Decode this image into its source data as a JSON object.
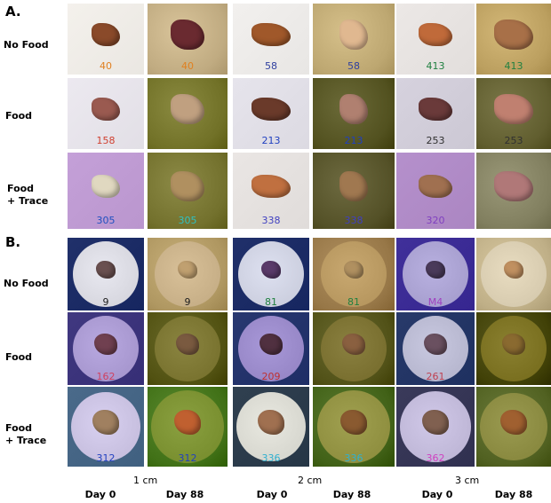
{
  "panel_a": {
    "letter": "A.",
    "rows": [
      {
        "label1": "No Food",
        "label2": "",
        "tags": [
          "40",
          "40",
          "58",
          "58",
          "413",
          "413"
        ],
        "tag_colors": [
          "#e08020",
          "#e08020",
          "#3040a0",
          "#3040a0",
          "#208040",
          "#208040"
        ]
      },
      {
        "label1": "Food",
        "label2": "",
        "tags": [
          "158",
          "",
          "213",
          "213",
          "253",
          "253"
        ],
        "tag_colors": [
          "#d04030",
          "#d04030",
          "#2040c0",
          "#2040c0",
          "#303030",
          "#303030"
        ]
      },
      {
        "label1": "Food",
        "label2": "+ Trace",
        "tags": [
          "305",
          "305",
          "338",
          "338",
          "320",
          ""
        ],
        "tag_colors": [
          "#2050c0",
          "#30c0c0",
          "#4040c0",
          "#4040c0",
          "#8040c0",
          "#8040c0"
        ]
      }
    ]
  },
  "panel_b": {
    "letter": "B.",
    "rows": [
      {
        "label1": "No Food",
        "label2": "",
        "tags": [
          "9",
          "9",
          "81",
          "81",
          "M4",
          ""
        ],
        "tag_colors": [
          "#202020",
          "#202020",
          "#208040",
          "#208040",
          "#a040c0",
          "#c040c0"
        ]
      },
      {
        "label1": "Food",
        "label2": "",
        "tags": [
          "162",
          "",
          "209",
          "",
          "261",
          ""
        ],
        "tag_colors": [
          "#d04060",
          "#d04060",
          "#c03030",
          "#c03030",
          "#c04050",
          "#c04050"
        ]
      },
      {
        "label1": "Food",
        "label2": "+ Trace",
        "tags": [
          "312",
          "312",
          "336",
          "336",
          "362",
          ""
        ],
        "tag_colors": [
          "#2040c0",
          "#2040c0",
          "#30b0d0",
          "#30b0d0",
          "#d040c0",
          "#d040c0"
        ]
      }
    ]
  },
  "scale_labels": [
    "1 cm",
    "2 cm",
    "3 cm"
  ],
  "column_labels": [
    "Day 0",
    "Day 88",
    "Day 0",
    "Day 88",
    "Day 0",
    "Day 88"
  ]
}
